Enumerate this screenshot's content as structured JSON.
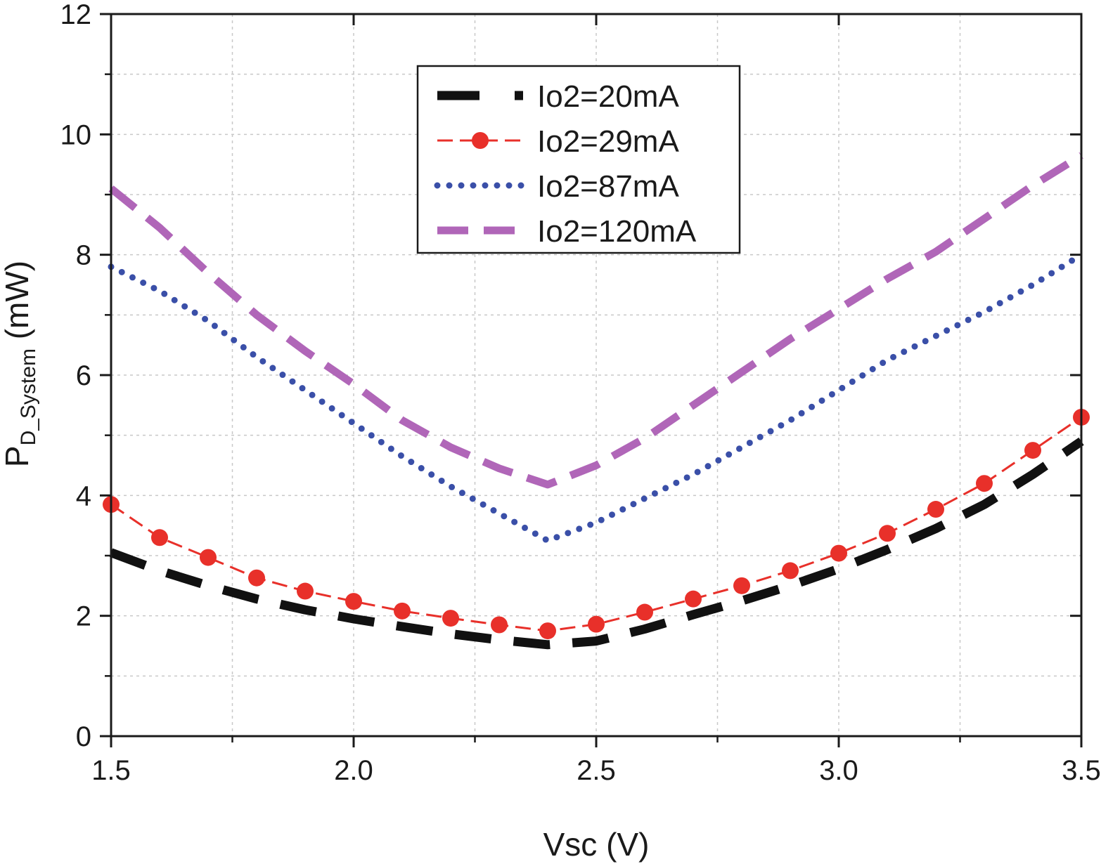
{
  "chart_data": {
    "type": "line",
    "title": "",
    "xlabel": "Vsc (V)",
    "ylabel": {
      "main": "P",
      "sub": "D_System",
      "unit": " (mW)"
    },
    "xlim": [
      1.5,
      3.5
    ],
    "ylim": [
      0,
      12
    ],
    "xticks": [
      1.5,
      2.0,
      2.5,
      3.0,
      3.5
    ],
    "xtick_labels": [
      "1.5",
      "2.0",
      "2.5",
      "3.0",
      "3.5"
    ],
    "yticks": [
      0,
      2,
      4,
      6,
      8,
      10,
      12
    ],
    "ytick_labels": [
      "0",
      "2",
      "4",
      "6",
      "8",
      "10",
      "12"
    ],
    "grid": true,
    "legend_position": "top-center",
    "series": [
      {
        "name": "Io2=20mA",
        "color": "#111111",
        "style": "long-dash",
        "markers": false,
        "x": [
          1.5,
          1.6,
          1.7,
          1.8,
          1.9,
          2.0,
          2.1,
          2.2,
          2.3,
          2.4,
          2.5,
          2.6,
          2.7,
          2.8,
          2.9,
          3.0,
          3.1,
          3.2,
          3.3,
          3.4,
          3.5
        ],
        "y": [
          3.05,
          2.75,
          2.5,
          2.28,
          2.1,
          1.95,
          1.82,
          1.7,
          1.6,
          1.52,
          1.58,
          1.78,
          2.02,
          2.25,
          2.5,
          2.78,
          3.1,
          3.45,
          3.85,
          4.35,
          4.9
        ]
      },
      {
        "name": "Io2=29mA",
        "color": "#e8302a",
        "style": "dash-dot-marker",
        "markers": true,
        "x": [
          1.5,
          1.6,
          1.7,
          1.8,
          1.9,
          2.0,
          2.1,
          2.2,
          2.3,
          2.4,
          2.5,
          2.6,
          2.7,
          2.8,
          2.9,
          3.0,
          3.1,
          3.2,
          3.3,
          3.4,
          3.5
        ],
        "y": [
          3.85,
          3.3,
          2.97,
          2.63,
          2.41,
          2.24,
          2.08,
          1.96,
          1.85,
          1.75,
          1.86,
          2.06,
          2.28,
          2.5,
          2.75,
          3.04,
          3.37,
          3.77,
          4.2,
          4.75,
          5.3
        ]
      },
      {
        "name": "Io2=87mA",
        "color": "#3a4fa8",
        "style": "dotted",
        "markers": false,
        "x": [
          1.5,
          1.6,
          1.7,
          1.8,
          1.9,
          2.0,
          2.1,
          2.2,
          2.3,
          2.4,
          2.5,
          2.6,
          2.7,
          2.8,
          2.9,
          3.0,
          3.1,
          3.2,
          3.3,
          3.4,
          3.5
        ],
        "y": [
          7.8,
          7.4,
          6.9,
          6.3,
          5.75,
          5.2,
          4.65,
          4.15,
          3.7,
          3.25,
          3.55,
          3.95,
          4.35,
          4.8,
          5.25,
          5.75,
          6.25,
          6.65,
          7.05,
          7.5,
          8.0
        ]
      },
      {
        "name": "Io2=120mA",
        "color": "#b066b8",
        "style": "dashed",
        "markers": false,
        "x": [
          1.5,
          1.6,
          1.7,
          1.8,
          1.9,
          2.0,
          2.1,
          2.2,
          2.3,
          2.4,
          2.5,
          2.6,
          2.7,
          2.8,
          2.9,
          3.0,
          3.1,
          3.2,
          3.3,
          3.4,
          3.5
        ],
        "y": [
          9.1,
          8.45,
          7.7,
          7.0,
          6.4,
          5.85,
          5.25,
          4.8,
          4.45,
          4.18,
          4.5,
          4.95,
          5.5,
          6.05,
          6.6,
          7.1,
          7.6,
          8.05,
          8.6,
          9.15,
          9.65
        ]
      }
    ]
  }
}
